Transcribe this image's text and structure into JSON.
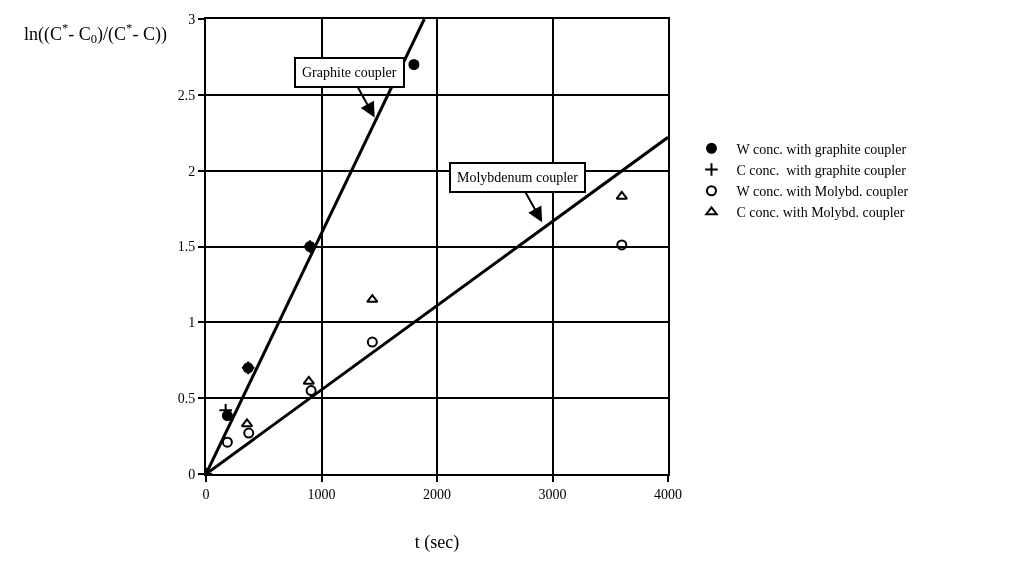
{
  "chart_data": {
    "type": "scatter",
    "xlabel": "t (sec)",
    "ylabel": "ln((C$^{*}$- C$_{0}$)/(C$^{*}$- C))",
    "xlim": [
      0,
      4000
    ],
    "xticks": [
      0,
      1000,
      2000,
      3000,
      4000
    ],
    "ylim": [
      0,
      3
    ],
    "yticks": [
      0,
      0.5,
      1,
      1.5,
      2,
      2.5,
      3
    ],
    "grid": true,
    "legend": "right",
    "series": [
      {
        "name": "W conc. with graphite coupler",
        "color": "#000000",
        "marker": "circle",
        "x": [
          185,
          365,
          900,
          1800
        ],
        "values": [
          0.385,
          0.7,
          1.5,
          2.7
        ]
      },
      {
        "name": "C conc.  with graphite coupler",
        "color": "#000000",
        "marker": "cross",
        "x": [
          0,
          170,
          365,
          900
        ],
        "values": [
          0,
          0.42,
          0.7,
          1.5
        ]
      },
      {
        "name": "W conc. with Molybd. coupler",
        "color": "#000000",
        "marker": "circle-open",
        "x": [
          185,
          370,
          910,
          1440,
          3600
        ],
        "values": [
          0.21,
          0.27,
          0.55,
          0.87,
          1.51
        ]
      },
      {
        "name": "C conc. with Molybd. coupler",
        "color": "#000000",
        "marker": "triangle-open",
        "x": [
          355,
          890,
          1440,
          3600
        ],
        "values": [
          0.33,
          0.61,
          1.15,
          1.83
        ]
      },
      {
        "type": "line",
        "color": "#000000",
        "line_style": "solid",
        "x": [
          0,
          1890
        ],
        "values": [
          0,
          3
        ]
      },
      {
        "type": "line",
        "color": "#000000",
        "line_style": "solid",
        "x": [
          0,
          4000
        ],
        "values": [
          0,
          2.22
        ]
      }
    ],
    "annotations": [
      {
        "text": "Graphite coupler",
        "x": 1460,
        "y": 2.35
      },
      {
        "text": "Molybdenum coupler",
        "x": 2910,
        "y": 1.66
      }
    ]
  }
}
